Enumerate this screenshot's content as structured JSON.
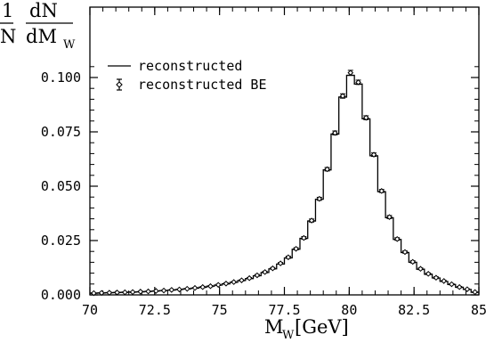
{
  "chart_data": {
    "type": "histogram-with-markers",
    "xlabel": {
      "main": "M",
      "sub": "W",
      "unit": " [GeV]"
    },
    "ylabel": {
      "frac_num": "1",
      "frac_den": "N",
      "num": "dN",
      "den_main": "dM",
      "den_sub": "W"
    },
    "xlim": [
      70,
      85
    ],
    "ylim": [
      0,
      0.11
    ],
    "xticks": [
      "70",
      "72.5",
      "75",
      "77.5",
      "80",
      "82.5",
      "85"
    ],
    "xtick_values": [
      70,
      72.5,
      75,
      77.5,
      80,
      82.5,
      85
    ],
    "yticks": [
      "0.000",
      "0.025",
      "0.050",
      "0.075",
      "0.100"
    ],
    "ytick_values": [
      0,
      0.025,
      0.05,
      0.075,
      0.1
    ],
    "bin_width": 0.3,
    "legend_position": "top-left",
    "series": [
      {
        "name": "reconstructed",
        "style": "step-line",
        "bins_low": [
          70.0,
          70.3,
          70.6,
          70.9,
          71.2,
          71.5,
          71.8,
          72.1,
          72.4,
          72.7,
          73.0,
          73.3,
          73.6,
          73.9,
          74.2,
          74.5,
          74.8,
          75.1,
          75.4,
          75.7,
          76.0,
          76.3,
          76.6,
          76.9,
          77.2,
          77.5,
          77.8,
          78.1,
          78.4,
          78.7,
          79.0,
          79.3,
          79.6,
          79.9,
          80.2,
          80.5,
          80.8,
          81.1,
          81.4,
          81.7,
          82.0,
          82.3,
          82.6,
          82.9,
          83.2,
          83.5,
          83.8,
          84.1,
          84.4,
          84.7
        ],
        "values": [
          0.0008,
          0.0009,
          0.001,
          0.0011,
          0.0012,
          0.0013,
          0.0014,
          0.0016,
          0.0018,
          0.002,
          0.0022,
          0.0025,
          0.0028,
          0.0031,
          0.0035,
          0.004,
          0.0045,
          0.0051,
          0.0058,
          0.0066,
          0.0075,
          0.0088,
          0.0103,
          0.012,
          0.0142,
          0.017,
          0.021,
          0.026,
          0.034,
          0.044,
          0.0575,
          0.074,
          0.091,
          0.101,
          0.097,
          0.081,
          0.064,
          0.0475,
          0.0355,
          0.0255,
          0.0195,
          0.015,
          0.0118,
          0.0095,
          0.0078,
          0.0062,
          0.0048,
          0.0035,
          0.0025,
          0.0012
        ]
      },
      {
        "name": "reconstructed BE",
        "style": "marker-errorbar",
        "x": [
          70.15,
          70.45,
          70.75,
          71.05,
          71.35,
          71.65,
          71.95,
          72.25,
          72.55,
          72.85,
          73.15,
          73.45,
          73.75,
          74.05,
          74.35,
          74.65,
          74.95,
          75.25,
          75.55,
          75.85,
          76.15,
          76.45,
          76.75,
          77.05,
          77.35,
          77.65,
          77.95,
          78.25,
          78.55,
          78.85,
          79.15,
          79.45,
          79.75,
          80.05,
          80.35,
          80.65,
          80.95,
          81.25,
          81.55,
          81.85,
          82.15,
          82.45,
          82.75,
          83.05,
          83.35,
          83.65,
          83.95,
          84.25,
          84.55,
          84.85
        ],
        "values": [
          0.0008,
          0.0009,
          0.001,
          0.0011,
          0.0012,
          0.0013,
          0.0015,
          0.0016,
          0.0018,
          0.002,
          0.0023,
          0.0025,
          0.0028,
          0.0032,
          0.0036,
          0.004,
          0.0046,
          0.0052,
          0.0059,
          0.0067,
          0.0077,
          0.009,
          0.0105,
          0.0122,
          0.0145,
          0.0173,
          0.0212,
          0.0262,
          0.0342,
          0.0442,
          0.0578,
          0.0745,
          0.0915,
          0.1022,
          0.0978,
          0.0815,
          0.0645,
          0.0478,
          0.0358,
          0.0257,
          0.0197,
          0.0152,
          0.012,
          0.0097,
          0.0079,
          0.0064,
          0.0049,
          0.0036,
          0.0026,
          0.0013
        ],
        "errors": [
          0.0002,
          0.0002,
          0.0002,
          0.0002,
          0.0002,
          0.0002,
          0.0002,
          0.0002,
          0.0002,
          0.0002,
          0.0002,
          0.0002,
          0.0002,
          0.0002,
          0.0003,
          0.0003,
          0.0003,
          0.0003,
          0.0003,
          0.0003,
          0.0003,
          0.0004,
          0.0004,
          0.0004,
          0.0004,
          0.0005,
          0.0005,
          0.0006,
          0.0007,
          0.0007,
          0.0008,
          0.0009,
          0.001,
          0.0011,
          0.001,
          0.0009,
          0.0008,
          0.0007,
          0.0007,
          0.0006,
          0.0005,
          0.0005,
          0.0004,
          0.0004,
          0.0004,
          0.0003,
          0.0003,
          0.0003,
          0.0002,
          0.0002
        ]
      }
    ]
  }
}
